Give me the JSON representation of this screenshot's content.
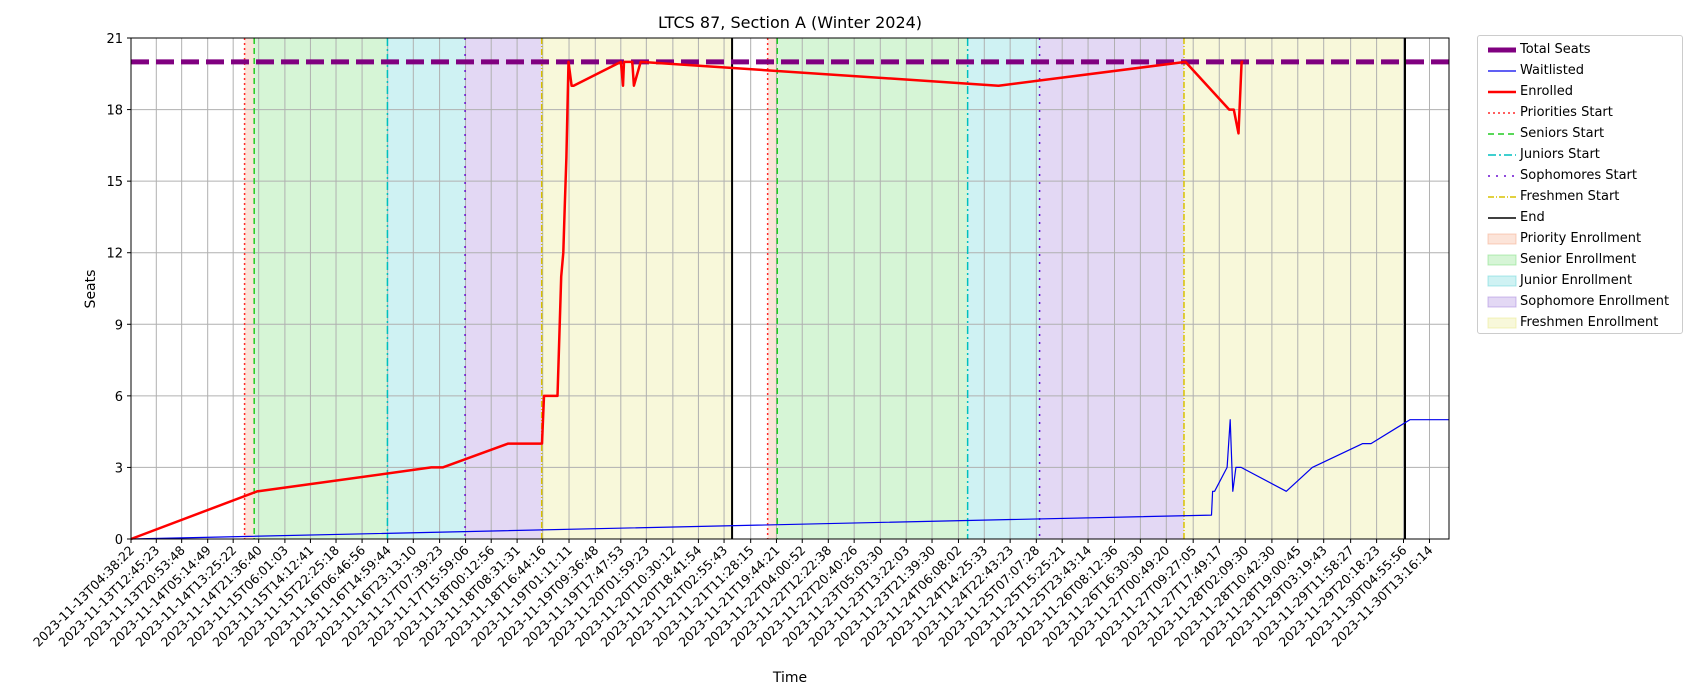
{
  "chart_data": {
    "type": "line",
    "title": "LTCS 87, Section A (Winter 2024)",
    "xlabel": "Time",
    "ylabel": "Seats",
    "ylim": [
      0,
      21
    ],
    "yticks": [
      0,
      3,
      6,
      9,
      12,
      15,
      18,
      21
    ],
    "xlim": [
      "2023-11-13T04:38:22",
      "2023-11-30T19:32:00"
    ],
    "xticks": [
      "2023-11-13T04:38:22",
      "2023-11-13T12:45:23",
      "2023-11-13T20:53:48",
      "2023-11-14T05:14:49",
      "2023-11-14T13:25:22",
      "2023-11-14T21:36:40",
      "2023-11-15T06:01:03",
      "2023-11-15T14:12:41",
      "2023-11-15T22:25:18",
      "2023-11-16T06:46:56",
      "2023-11-16T14:59:44",
      "2023-11-16T23:13:10",
      "2023-11-17T07:39:23",
      "2023-11-17T15:59:06",
      "2023-11-18T00:12:56",
      "2023-11-18T08:31:31",
      "2023-11-18T16:44:16",
      "2023-11-19T01:11:11",
      "2023-11-19T09:36:48",
      "2023-11-19T17:47:53",
      "2023-11-20T01:59:23",
      "2023-11-20T10:30:12",
      "2023-11-20T18:41:54",
      "2023-11-21T02:55:43",
      "2023-11-21T11:28:15",
      "2023-11-21T19:44:21",
      "2023-11-22T04:00:52",
      "2023-11-22T12:22:38",
      "2023-11-22T20:40:26",
      "2023-11-23T05:03:30",
      "2023-11-23T13:22:03",
      "2023-11-23T21:39:30",
      "2023-11-24T06:08:02",
      "2023-11-24T14:25:33",
      "2023-11-24T22:43:23",
      "2023-11-25T07:07:28",
      "2023-11-25T15:25:21",
      "2023-11-25T23:43:14",
      "2023-11-26T08:12:36",
      "2023-11-26T16:30:30",
      "2023-11-27T00:49:20",
      "2023-11-27T09:27:05",
      "2023-11-27T17:49:17",
      "2023-11-28T02:09:30",
      "2023-11-28T10:42:30",
      "2023-11-28T19:00:45",
      "2023-11-29T03:19:43",
      "2023-11-29T11:58:27",
      "2023-11-29T20:18:23",
      "2023-11-30T04:55:56",
      "2023-11-30T13:16:14"
    ],
    "grid": true,
    "legend_position": "outside upper right",
    "spans": [
      {
        "label": "Priority Enrollment",
        "color": "#f4a582",
        "from": "2023-11-14T17:05:00",
        "to": "2023-11-14T20:10:00"
      },
      {
        "label": "Senior Enrollment",
        "color": "#77dd77",
        "from": "2023-11-14T20:10:00",
        "to": "2023-11-16T14:55:00"
      },
      {
        "label": "Junior Enrollment",
        "color": "#5fd3d8",
        "from": "2023-11-16T14:55:00",
        "to": "2023-11-17T15:50:00"
      },
      {
        "label": "Sophomore Enrollment",
        "color": "#a27ddb",
        "from": "2023-11-17T15:50:00",
        "to": "2023-11-18T16:25:00"
      },
      {
        "label": "Freshmen Enrollment",
        "color": "#e8e884",
        "from": "2023-11-18T16:25:00",
        "to": "2023-11-21T05:30:00"
      },
      {
        "label": "Priority Enrollment",
        "color": "#f4a582",
        "from": "2023-11-21T16:55:00",
        "to": "2023-11-21T20:00:00"
      },
      {
        "label": "Senior Enrollment",
        "color": "#77dd77",
        "from": "2023-11-21T20:00:00",
        "to": "2023-11-24T09:05:00"
      },
      {
        "label": "Junior Enrollment",
        "color": "#5fd3d8",
        "from": "2023-11-24T09:05:00",
        "to": "2023-11-25T08:10:00"
      },
      {
        "label": "Sophomore Enrollment",
        "color": "#a27ddb",
        "from": "2023-11-25T08:10:00",
        "to": "2023-11-27T06:30:00"
      },
      {
        "label": "Freshmen Enrollment",
        "color": "#e8e884",
        "from": "2023-11-27T06:30:00",
        "to": "2023-11-30T05:25:00"
      }
    ],
    "vlines": [
      {
        "label": "Priorities Start",
        "color": "#ff2a2a",
        "dash": "2,3",
        "x": [
          "2023-11-14T17:05:00",
          "2023-11-21T16:55:00"
        ]
      },
      {
        "label": "Seniors Start",
        "color": "#22cc22",
        "dash": "6,4",
        "x": [
          "2023-11-14T20:10:00",
          "2023-11-21T20:00:00"
        ]
      },
      {
        "label": "Juniors Start",
        "color": "#00bfbf",
        "dash": "8,3,2,3",
        "x": [
          "2023-11-16T14:55:00",
          "2023-11-24T09:05:00"
        ]
      },
      {
        "label": "Sophomores Start",
        "color": "#6a0dd0",
        "dash": "2,6",
        "x": [
          "2023-11-17T15:50:00",
          "2023-11-25T08:10:00"
        ]
      },
      {
        "label": "Freshmen Start",
        "color": "#d9c200",
        "dash": "6,2,1,2",
        "x": [
          "2023-11-18T16:25:00",
          "2023-11-27T06:30:00"
        ]
      },
      {
        "label": "End",
        "color": "#000000",
        "dash": "",
        "x": [
          "2023-11-21T05:30:00",
          "2023-11-30T05:25:00"
        ]
      }
    ],
    "series": [
      {
        "name": "Total Seats",
        "color": "#800080",
        "style": "dashed",
        "x": [
          "2023-11-13T04:38:22",
          "2023-11-30T19:32:00"
        ],
        "y": [
          20,
          20
        ]
      },
      {
        "name": "Waitlisted",
        "color": "#0000ee",
        "style": "step",
        "x": [
          "2023-11-13T04:38:22",
          "2023-11-27T15:20:00",
          "2023-11-27T15:40:00",
          "2023-11-27T16:20:00",
          "2023-11-27T20:20:00",
          "2023-11-27T21:20:00",
          "2023-11-27T22:10:00",
          "2023-11-27T23:10:00",
          "2023-11-27T23:40:00",
          "2023-11-28T00:50:00",
          "2023-11-28T15:20:00",
          "2023-11-28T23:40:00",
          "2023-11-29T15:50:00",
          "2023-11-29T18:30:00",
          "2023-11-30T07:00:00",
          "2023-11-30T19:32:00"
        ],
        "y": [
          0,
          1,
          2,
          2,
          3,
          5,
          2,
          3,
          3,
          3,
          2,
          3,
          4,
          4,
          5,
          5
        ]
      },
      {
        "name": "Enrolled",
        "color": "#ff0000",
        "style": "step",
        "x": [
          "2023-11-13T04:38:22",
          "2023-11-14T21:10:00",
          "2023-11-14T21:30:00",
          "2023-11-17T05:00:00",
          "2023-11-17T08:40:00",
          "2023-11-18T05:40:00",
          "2023-11-18T16:30:00",
          "2023-11-18T17:10:00",
          "2023-11-18T21:30:00",
          "2023-11-18T22:40:00",
          "2023-11-18T23:20:00",
          "2023-11-18T23:50:00",
          "2023-11-19T00:20:00",
          "2023-11-19T01:00:00",
          "2023-11-19T02:00:00",
          "2023-11-19T02:40:00",
          "2023-11-19T17:50:00",
          "2023-11-19T18:30:00",
          "2023-11-19T18:50:00",
          "2023-11-19T21:30:00",
          "2023-11-19T22:00:00",
          "2023-11-20T00:10:00",
          "2023-11-24T19:00:00",
          "2023-11-27T07:00:00",
          "2023-11-27T21:00:00",
          "2023-11-27T22:30:00",
          "2023-11-28T00:00:00",
          "2023-11-28T01:00:00",
          "2023-11-28T01:30:00"
        ],
        "y": [
          0,
          2,
          2,
          3,
          3,
          4,
          4,
          6,
          6,
          11,
          12,
          14,
          16,
          20,
          19,
          19,
          20,
          19,
          20,
          20,
          19,
          20,
          19,
          20,
          18,
          18,
          17,
          20,
          20
        ]
      }
    ]
  }
}
